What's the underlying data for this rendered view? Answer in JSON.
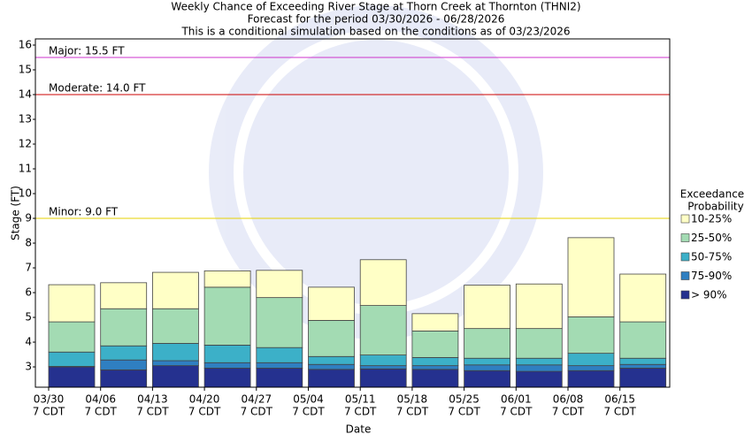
{
  "chart_data": {
    "type": "floating_bar",
    "title": "Weekly Chance of Exceeding River Stage at Thorn Creek at Thornton (THNI2)",
    "subtitle": "Forecast for the period 03/30/2026 - 06/28/2026",
    "note": "This is a conditional simulation based on the conditions as of 03/23/2026",
    "x_label": "Date",
    "y_label": "Stage (FT)",
    "categories": [
      "03/30",
      "04/06",
      "04/13",
      "04/20",
      "04/27",
      "05/04",
      "05/11",
      "05/18",
      "05/25",
      "06/01",
      "06/08",
      "06/15"
    ],
    "category_sublabels": [
      "7 CDT",
      "7 CDT",
      "7 CDT",
      "7 CDT",
      "7 CDT",
      "7 CDT",
      "7 CDT",
      "7 CDT",
      "7 CDT",
      "7 CDT",
      "7 CDT",
      "7 CDT"
    ],
    "legend_title": [
      "Exceedance",
      "Probability"
    ],
    "series": [
      {
        "name": "> 90%",
        "color": "#25318f",
        "values": [
          3.0,
          2.88,
          3.05,
          2.95,
          2.95,
          2.9,
          2.92,
          2.9,
          2.85,
          2.82,
          2.85,
          2.95
        ]
      },
      {
        "name": "75-90%",
        "color": "#2f7fc1",
        "values": [
          3.02,
          3.28,
          3.25,
          3.17,
          3.17,
          3.1,
          3.05,
          3.05,
          3.08,
          3.08,
          3.05,
          3.1
        ]
      },
      {
        "name": "50-75%",
        "color": "#3cb0c8",
        "values": [
          3.6,
          3.85,
          3.95,
          3.88,
          3.78,
          3.42,
          3.48,
          3.38,
          3.35,
          3.35,
          3.55,
          3.35
        ]
      },
      {
        "name": "25-50%",
        "color": "#a3dbb3",
        "values": [
          4.82,
          5.35,
          5.35,
          6.22,
          5.8,
          4.88,
          5.48,
          4.45,
          4.55,
          4.55,
          5.02,
          4.82
        ]
      },
      {
        "name": "10-25%",
        "color": "#ffffc6",
        "values": [
          6.32,
          6.4,
          6.82,
          6.88,
          6.9,
          6.22,
          7.33,
          5.15,
          6.3,
          6.35,
          8.22,
          6.75
        ]
      }
    ],
    "thresholds": [
      {
        "label": "Major: 15.5 FT",
        "value": 15.5,
        "color": "#cc33cc"
      },
      {
        "label": "Moderate: 14.0 FT",
        "value": 14.0,
        "color": "#cc0000"
      },
      {
        "label": "Minor: 9.0 FT",
        "value": 9.0,
        "color": "#e6d200"
      }
    ],
    "ylim": [
      2.18,
      16.25
    ],
    "yticks": [
      3,
      4,
      5,
      6,
      7,
      8,
      9,
      10,
      11,
      12,
      13,
      14,
      15,
      16
    ]
  }
}
